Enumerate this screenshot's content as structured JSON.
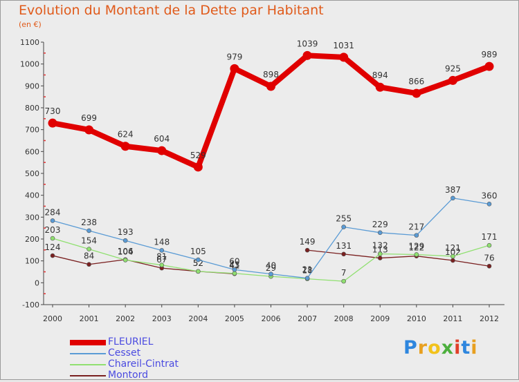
{
  "title": "Evolution du Montant de la Dette par Habitant",
  "subtitle": "(en €)",
  "logo": {
    "letters": [
      {
        "ch": "P",
        "color": "#2e86de"
      },
      {
        "ch": "r",
        "color": "#e8a020"
      },
      {
        "ch": "o",
        "color": "#f2c21b"
      },
      {
        "ch": "x",
        "color": "#4caf3d"
      },
      {
        "ch": "i",
        "color": "#e0402a"
      },
      {
        "ch": "t",
        "color": "#2e86de"
      },
      {
        "ch": "i",
        "color": "#e8a020"
      }
    ]
  },
  "chart_data": {
    "type": "line",
    "title": "Evolution du Montant de la Dette par Habitant",
    "subtitle": "(en €)",
    "xlabel": "",
    "ylabel": "",
    "ylim": [
      -100,
      1100
    ],
    "yticks": [
      -100,
      0,
      100,
      200,
      300,
      400,
      500,
      600,
      700,
      800,
      900,
      1000,
      1100
    ],
    "x": [
      "2000",
      "2001",
      "2002",
      "2003",
      "2004",
      "2005",
      "2006",
      "2007",
      "2008",
      "2009",
      "2010",
      "2011",
      "2012"
    ],
    "grid": false,
    "legend": "bottom-left",
    "series": [
      {
        "name": "FLEURIEL",
        "color": "#e00000",
        "values": [
          730,
          699,
          624,
          604,
          529,
          979,
          898,
          1039,
          1031,
          894,
          866,
          925,
          989
        ]
      },
      {
        "name": "Cesset",
        "color": "#5a9bd5",
        "values": [
          284,
          238,
          193,
          148,
          105,
          60,
          40,
          21,
          255,
          229,
          217,
          387,
          360
        ]
      },
      {
        "name": "Chareil-Cintrat",
        "color": "#90e070",
        "values": [
          203,
          154,
          104,
          81,
          52,
          43,
          29,
          18,
          7,
          132,
          129,
          121,
          171
        ]
      },
      {
        "name": "Montord",
        "color": "#7a2020",
        "values": [
          124,
          84,
          106,
          67,
          52,
          41,
          null,
          149,
          131,
          113,
          122,
          102,
          76
        ]
      }
    ]
  }
}
